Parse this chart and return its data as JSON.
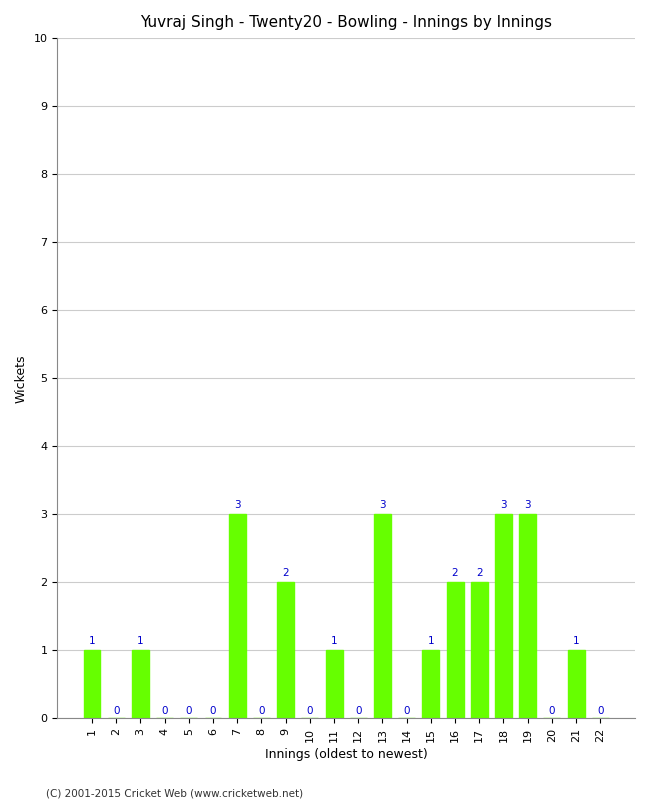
{
  "title": "Yuvraj Singh - Twenty20 - Bowling - Innings by Innings",
  "xlabel": "Innings (oldest to newest)",
  "ylabel": "Wickets",
  "footer": "(C) 2001-2015 Cricket Web (www.cricketweb.net)",
  "innings": [
    1,
    2,
    3,
    4,
    5,
    6,
    7,
    8,
    9,
    10,
    11,
    12,
    13,
    14,
    15,
    16,
    17,
    18,
    19,
    20,
    21,
    22
  ],
  "wickets": [
    1,
    0,
    1,
    0,
    0,
    0,
    3,
    0,
    2,
    0,
    1,
    0,
    3,
    0,
    1,
    2,
    2,
    3,
    3,
    0,
    1,
    0
  ],
  "bar_color": "#66ff00",
  "bar_edge_color": "#66ff00",
  "label_color": "#0000cc",
  "ylim": [
    0,
    10
  ],
  "yticks": [
    0,
    1,
    2,
    3,
    4,
    5,
    6,
    7,
    8,
    9,
    10
  ],
  "background_color": "#ffffff",
  "grid_color": "#cccccc",
  "title_fontsize": 11,
  "axis_label_fontsize": 9,
  "tick_fontsize": 8,
  "bar_label_fontsize": 7.5,
  "footer_fontsize": 7.5
}
